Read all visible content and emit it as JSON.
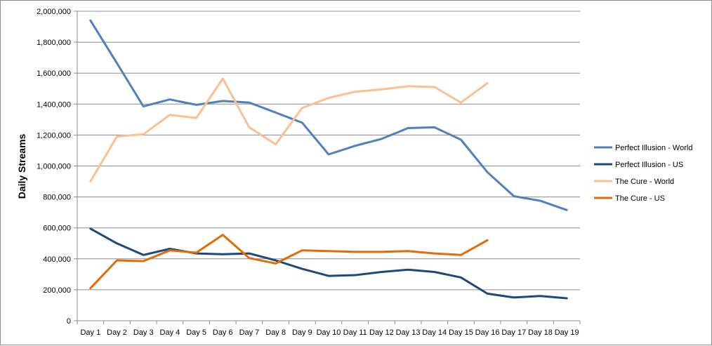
{
  "chart_data": {
    "type": "line",
    "title": "",
    "xlabel": "",
    "ylabel": "Daily Streams",
    "ylim": [
      0,
      2000000
    ],
    "ytick_step": 200000,
    "ytick_labels": [
      "0",
      "200,000",
      "400,000",
      "600,000",
      "800,000",
      "1,000,000",
      "1,200,000",
      "1,400,000",
      "1,600,000",
      "1,800,000",
      "2,000,000"
    ],
    "grid": true,
    "legend_position": "right",
    "categories": [
      "Day 1",
      "Day 2",
      "Day 3",
      "Day 4",
      "Day 5",
      "Day 6",
      "Day 7",
      "Day 8",
      "Day 9",
      "Day 10",
      "Day 11",
      "Day 12",
      "Day 13",
      "Day 14",
      "Day 15",
      "Day 16",
      "Day 17",
      "Day 18",
      "Day 19"
    ],
    "series": [
      {
        "name": "Perfect Illusion - World",
        "color": "#4F81BD",
        "values": [
          1940000,
          1665000,
          1385000,
          1430000,
          1395000,
          1420000,
          1410000,
          1345000,
          1280000,
          1075000,
          1130000,
          1175000,
          1245000,
          1250000,
          1170000,
          960000,
          805000,
          775000,
          715000
        ]
      },
      {
        "name": "Perfect Illusion - US",
        "color": "#1F497D",
        "values": [
          595000,
          500000,
          425000,
          465000,
          435000,
          430000,
          435000,
          390000,
          335000,
          290000,
          295000,
          315000,
          330000,
          315000,
          280000,
          175000,
          150000,
          160000,
          145000
        ]
      },
      {
        "name": "The Cure - World",
        "color": "#FAC090",
        "values": [
          900000,
          1190000,
          1205000,
          1330000,
          1310000,
          1565000,
          1250000,
          1140000,
          1375000,
          1440000,
          1480000,
          1495000,
          1515000,
          1510000,
          1410000,
          1535000,
          null,
          null,
          null
        ]
      },
      {
        "name": "The Cure - US",
        "color": "#E36C09",
        "values": [
          210000,
          390000,
          385000,
          455000,
          440000,
          555000,
          405000,
          370000,
          455000,
          450000,
          445000,
          445000,
          450000,
          435000,
          425000,
          520000,
          null,
          null,
          null
        ]
      }
    ]
  }
}
